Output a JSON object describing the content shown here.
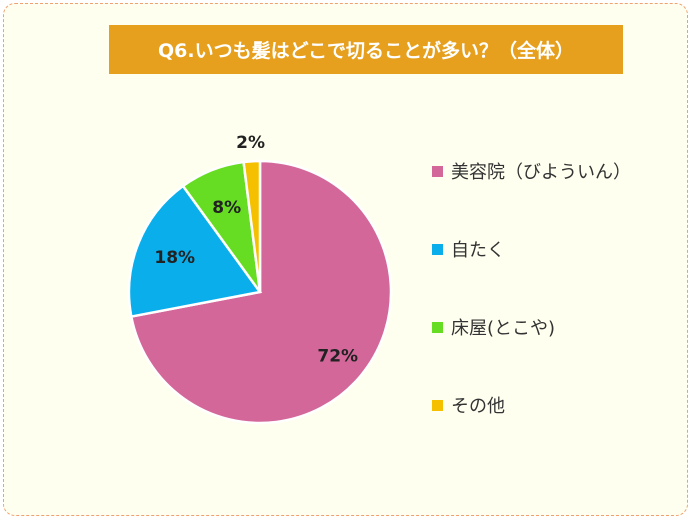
{
  "title": "Q6.いつも髪はどこで切ることが多い？（全体）",
  "colors": {
    "title_bg": "#e6a01e",
    "frame_bg": "#fffff0",
    "frame_border": "#f0a070"
  },
  "chart_data": {
    "type": "pie",
    "title": "Q6.いつも髪はどこで切ることが多い？（全体）",
    "categories": [
      "美容院（びよういん）",
      "自たく",
      "床屋(とこや)",
      "その他"
    ],
    "values": [
      72,
      18,
      8,
      2
    ],
    "labels": [
      "72%",
      "18%",
      "8%",
      "2%"
    ],
    "colors": [
      "#d4679a",
      "#0aaeeb",
      "#66dd22",
      "#f5c000"
    ],
    "legend_position": "right"
  }
}
